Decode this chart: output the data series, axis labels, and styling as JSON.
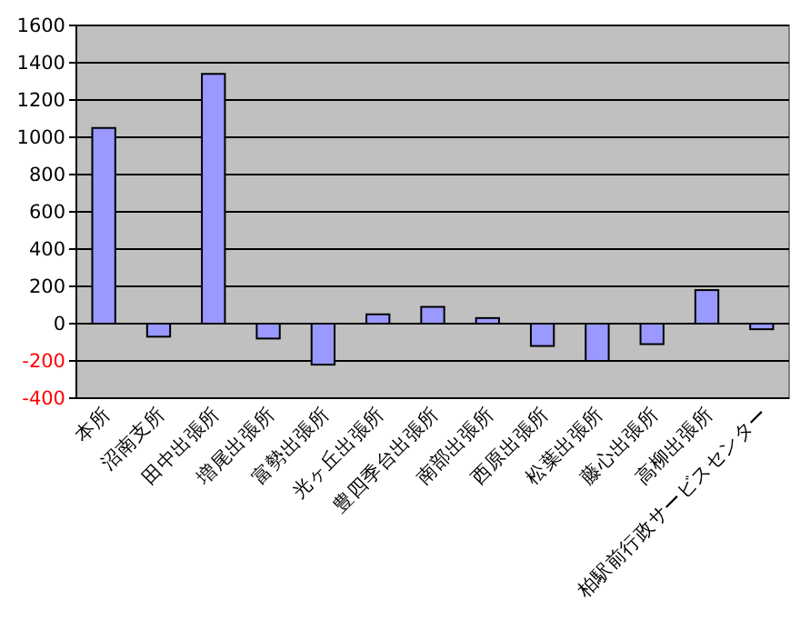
{
  "chart_data": {
    "type": "bar",
    "categories": [
      "本所",
      "沼南支所",
      "田中出張所",
      "増尾出張所",
      "富勢出張所",
      "光ヶ丘出張所",
      "豊四季台出張所",
      "南部出張所",
      "西原出張所",
      "松葉出張所",
      "藤心出張所",
      "高柳出張所",
      "柏駅前行政サービスセンター"
    ],
    "values": [
      1050,
      -70,
      1340,
      -80,
      -220,
      50,
      90,
      30,
      -120,
      -200,
      -110,
      180,
      -30
    ],
    "color": "#9999ff",
    "ylim": [
      -400,
      1600
    ],
    "yticks": [
      -400,
      -200,
      0,
      200,
      400,
      600,
      800,
      1000,
      1200,
      1400,
      1600
    ],
    "grid": "y"
  }
}
